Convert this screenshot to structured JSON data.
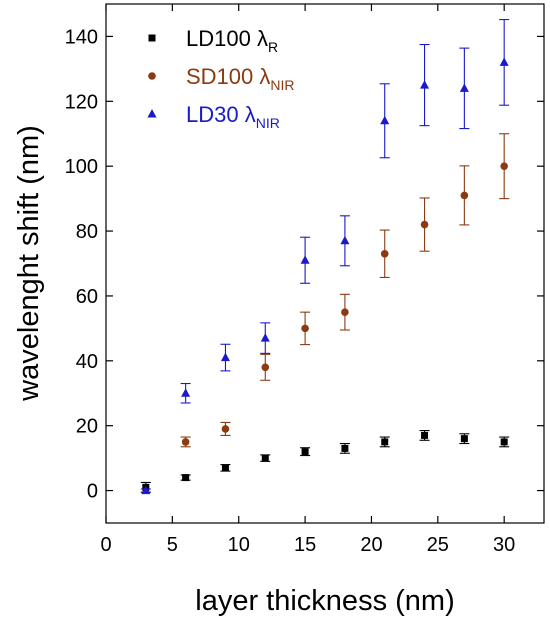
{
  "chart_data": {
    "type": "scatter",
    "xlabel": "layer thickness (nm)",
    "ylabel": "wavelenght shift (nm)",
    "xlim": [
      0,
      33
    ],
    "ylim": [
      -10,
      150
    ],
    "xticks": [
      0,
      5,
      10,
      15,
      20,
      25,
      30
    ],
    "yticks": [
      0,
      20,
      40,
      60,
      80,
      100,
      120,
      140
    ],
    "grid": false,
    "legend_position": "top-left",
    "series": [
      {
        "name": "LD100 λR",
        "label_main": "LD100 λ",
        "label_sub": "R",
        "marker": "square",
        "color": "#000000",
        "x": [
          3,
          6,
          9,
          12,
          15,
          18,
          21,
          24,
          27,
          30
        ],
        "y": [
          1,
          4,
          7,
          10,
          12,
          13,
          15,
          17,
          16,
          15
        ],
        "err": [
          1.5,
          0.8,
          1,
          1,
          1.2,
          1.5,
          1.5,
          1.5,
          1.5,
          1.5
        ]
      },
      {
        "name": "SD100 λNIR",
        "label_main": "SD100 λ",
        "label_sub": "NIR",
        "marker": "circle",
        "color": "#8b3a12",
        "x": [
          6,
          9,
          12,
          15,
          18,
          21,
          24,
          27,
          30
        ],
        "y": [
          15,
          19,
          38,
          50,
          55,
          73,
          82,
          91,
          100
        ],
        "err": [
          1.5,
          2,
          4,
          5,
          5.5,
          7.3,
          8.2,
          9.1,
          10
        ]
      },
      {
        "name": "LD30 λNIR",
        "label_main": "LD30  λ",
        "label_sub": "NIR",
        "marker": "triangle",
        "color": "#1a1acc",
        "x": [
          3,
          6,
          9,
          12,
          15,
          18,
          21,
          24,
          27,
          30
        ],
        "y": [
          0,
          30,
          41,
          47,
          71,
          77,
          114,
          125,
          124,
          132
        ],
        "err": [
          0.5,
          3,
          4.1,
          4.7,
          7.1,
          7.7,
          11.4,
          12.5,
          12.4,
          13.2
        ]
      }
    ]
  }
}
